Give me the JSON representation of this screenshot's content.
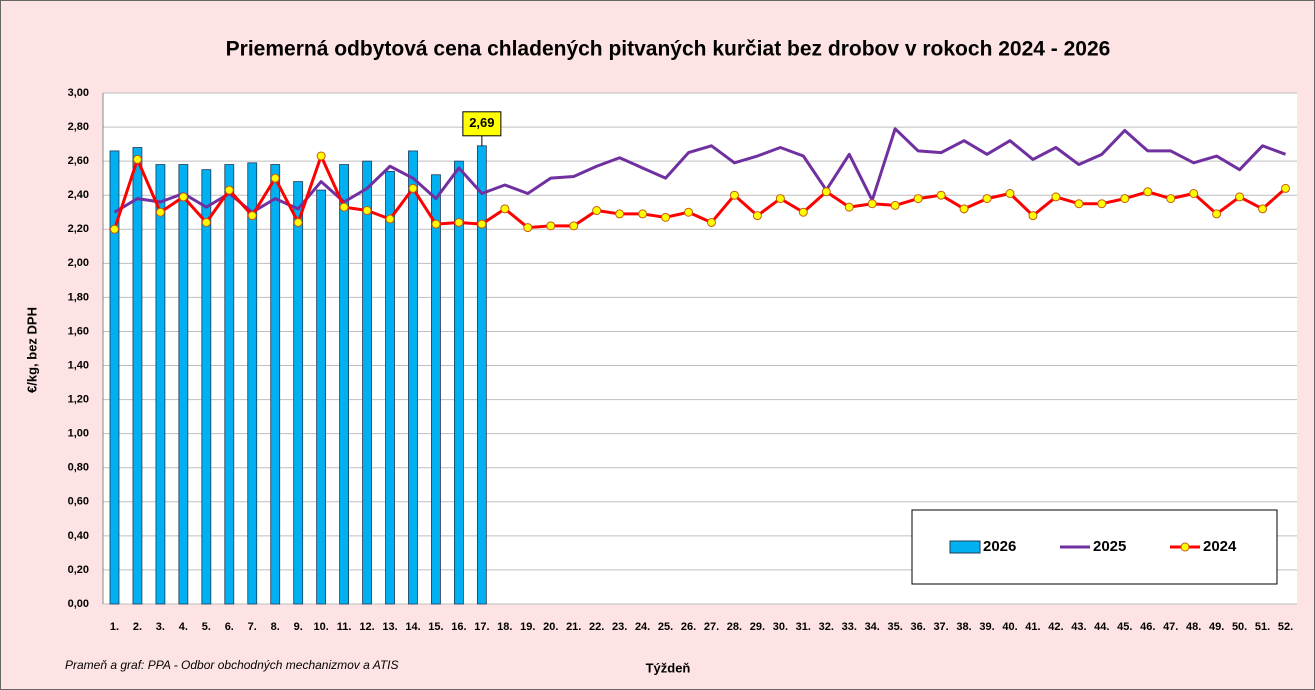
{
  "chart_data": {
    "type": "bar",
    "title": "Priemerná odbytová cena chladených pitvaných kurčiat bez drobov v rokoch 2024 - 2026",
    "x_label": "Týždeň",
    "y_label": "€/kg, bez DPH",
    "source": "Prameň a graf: PPA - Odbor obchodných mechanizmov a ATIS",
    "categories": [
      "1.",
      "2.",
      "3.",
      "4.",
      "5.",
      "6.",
      "7.",
      "8.",
      "9.",
      "10.",
      "11.",
      "12.",
      "13.",
      "14.",
      "15.",
      "16.",
      "17.",
      "18.",
      "19.",
      "20.",
      "21.",
      "22.",
      "23.",
      "24.",
      "25.",
      "26.",
      "27.",
      "28.",
      "29.",
      "30.",
      "31.",
      "32.",
      "33.",
      "34.",
      "35.",
      "36.",
      "37.",
      "38.",
      "39.",
      "40.",
      "41.",
      "42.",
      "43.",
      "44.",
      "45.",
      "46.",
      "47.",
      "48.",
      "49.",
      "50.",
      "51.",
      "52."
    ],
    "series": [
      {
        "name": "2026",
        "type": "bar",
        "color": "#00b0f0",
        "values": [
          2.66,
          2.68,
          2.58,
          2.58,
          2.55,
          2.58,
          2.59,
          2.58,
          2.48,
          2.43,
          2.58,
          2.6,
          2.54,
          2.66,
          2.52,
          2.6,
          2.69,
          null,
          null,
          null,
          null,
          null,
          null,
          null,
          null,
          null,
          null,
          null,
          null,
          null,
          null,
          null,
          null,
          null,
          null,
          null,
          null,
          null,
          null,
          null,
          null,
          null,
          null,
          null,
          null,
          null,
          null,
          null,
          null,
          null,
          null,
          null
        ],
        "value_labels": [
          null,
          null,
          null,
          null,
          null,
          null,
          null,
          null,
          null,
          null,
          null,
          null,
          null,
          null,
          null,
          null,
          "2,69",
          null,
          null,
          null,
          null,
          null,
          null,
          null,
          null,
          null,
          null,
          null,
          null,
          null,
          null,
          null,
          null,
          null,
          null,
          null,
          null,
          null,
          null,
          null,
          null,
          null,
          null,
          null,
          null,
          null,
          null,
          null,
          null,
          null,
          null,
          null
        ]
      },
      {
        "name": "2025",
        "type": "line",
        "color": "#7030a0",
        "values": [
          2.3,
          2.38,
          2.36,
          2.41,
          2.33,
          2.41,
          2.3,
          2.38,
          2.32,
          2.48,
          2.36,
          2.44,
          2.57,
          2.5,
          2.38,
          2.56,
          2.41,
          2.46,
          2.41,
          2.5,
          2.51,
          2.57,
          2.62,
          2.56,
          2.5,
          2.65,
          2.69,
          2.59,
          2.63,
          2.68,
          2.63,
          2.43,
          2.64,
          2.37,
          2.79,
          2.66,
          2.65,
          2.72,
          2.64,
          2.72,
          2.61,
          2.68,
          2.58,
          2.64,
          2.78,
          2.66,
          2.66,
          2.59,
          2.63,
          2.55,
          2.69,
          2.64
        ]
      },
      {
        "name": "2024",
        "type": "line",
        "color": "#ff0000",
        "marker_color": "#ffff00",
        "values": [
          2.2,
          2.61,
          2.3,
          2.39,
          2.24,
          2.43,
          2.28,
          2.5,
          2.24,
          2.63,
          2.33,
          2.31,
          2.26,
          2.44,
          2.23,
          2.24,
          2.23,
          2.32,
          2.21,
          2.22,
          2.22,
          2.31,
          2.29,
          2.29,
          2.27,
          2.3,
          2.24,
          2.4,
          2.28,
          2.38,
          2.3,
          2.42,
          2.33,
          2.35,
          2.34,
          2.38,
          2.4,
          2.32,
          2.38,
          2.41,
          2.28,
          2.39,
          2.35,
          2.35,
          2.38,
          2.42,
          2.38,
          2.41,
          2.29,
          2.39,
          2.32,
          2.44
        ]
      }
    ],
    "ylim": [
      0,
      3
    ],
    "yticks": [
      {
        "value": 0,
        "label": "0,00"
      },
      {
        "value": 0.2,
        "label": "0,20"
      },
      {
        "value": 0.4,
        "label": "0,40"
      },
      {
        "value": 0.6,
        "label": "0,60"
      },
      {
        "value": 0.8,
        "label": "0,80"
      },
      {
        "value": 1,
        "label": "1,00"
      },
      {
        "value": 1.2,
        "label": "1,20"
      },
      {
        "value": 1.4,
        "label": "1,40"
      },
      {
        "value": 1.6,
        "label": "1,60"
      },
      {
        "value": 1.8,
        "label": "1,80"
      },
      {
        "value": 2,
        "label": "2,00"
      },
      {
        "value": 2.2,
        "label": "2,20"
      },
      {
        "value": 2.4,
        "label": "2,40"
      },
      {
        "value": 2.6,
        "label": "2,60"
      },
      {
        "value": 2.8,
        "label": "2,80"
      },
      {
        "value": 3,
        "label": "3,00"
      }
    ],
    "grid": true,
    "legend": "bottom-right"
  }
}
